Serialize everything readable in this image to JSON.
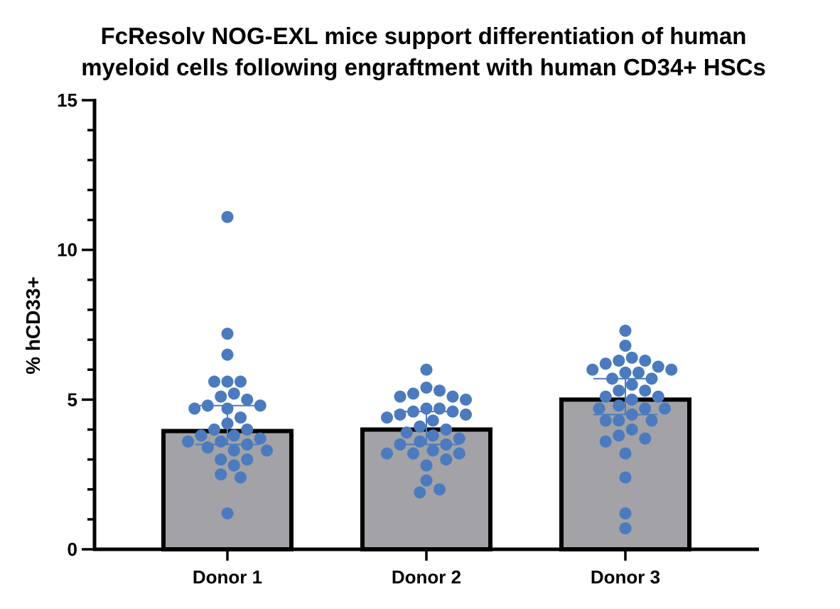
{
  "chart_data": {
    "type": "bar",
    "title_lines": [
      "FcResolv NOG-EXL mice support differentiation of human",
      "myeloid cells following engraftment with human CD34+ HSCs"
    ],
    "xlabel": "",
    "ylabel": "% hCD33+",
    "ylim": [
      0,
      15
    ],
    "yticks": [
      "0",
      "5",
      "10",
      "15"
    ],
    "categories": [
      "Donor 1",
      "Donor 2",
      "Donor 3"
    ],
    "values": [
      3.95,
      4.0,
      5.0
    ],
    "error": [
      {
        "low": 3.5,
        "high": 4.8
      },
      {
        "low": 3.5,
        "high": 4.6
      },
      {
        "low": 4.5,
        "high": 5.7
      }
    ],
    "points": [
      [
        11.1,
        7.2,
        6.5,
        5.6,
        5.6,
        5.6,
        5.2,
        5.1,
        5.0,
        4.8,
        4.8,
        4.7,
        4.7,
        4.4,
        4.2,
        4.0,
        4.0,
        3.8,
        3.8,
        3.7,
        3.6,
        3.6,
        3.5,
        3.4,
        3.3,
        3.3,
        3.0,
        3.0,
        2.8,
        2.5,
        2.4,
        1.2
      ],
      [
        6.0,
        5.4,
        5.3,
        5.2,
        5.1,
        5.1,
        5.0,
        4.7,
        4.7,
        4.6,
        4.6,
        4.5,
        4.5,
        4.4,
        4.3,
        4.1,
        4.0,
        3.9,
        3.8,
        3.7,
        3.6,
        3.5,
        3.5,
        3.3,
        3.2,
        3.2,
        3.2,
        3.0,
        2.8,
        2.3,
        2.0,
        1.9
      ],
      [
        7.3,
        6.8,
        6.4,
        6.3,
        6.3,
        6.2,
        6.1,
        6.0,
        6.0,
        5.9,
        5.9,
        5.7,
        5.7,
        5.5,
        5.3,
        5.3,
        5.1,
        5.1,
        5.0,
        4.8,
        4.7,
        4.7,
        4.7,
        4.5,
        4.3,
        4.3,
        4.3,
        4.0,
        3.8,
        3.7,
        3.6,
        3.2,
        2.4,
        1.2,
        0.7
      ]
    ],
    "colors": {
      "bar_fill": "#a2a2a7",
      "bar_stroke": "#000000",
      "point": "#4b7bbe",
      "error": "#4b7bbe",
      "axis": "#000000"
    }
  }
}
